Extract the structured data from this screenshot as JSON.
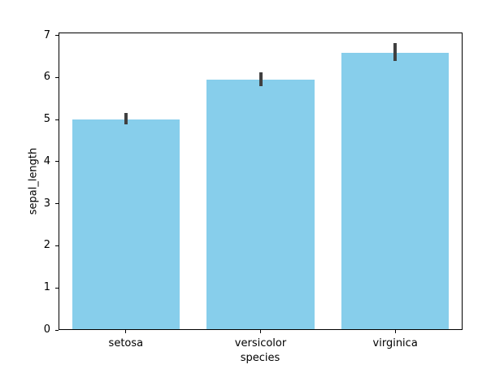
{
  "chart_data": {
    "type": "bar",
    "title": "",
    "xlabel": "species",
    "ylabel": "sepal_length",
    "categories": [
      "setosa",
      "versicolor",
      "virginica"
    ],
    "values": [
      5.01,
      5.94,
      6.59
    ],
    "error_bars": [
      {
        "low": 4.88,
        "high": 5.15
      },
      {
        "low": 5.8,
        "high": 6.13
      },
      {
        "low": 6.4,
        "high": 6.82
      }
    ],
    "yticks": [
      0,
      1,
      2,
      3,
      4,
      5,
      6,
      7
    ],
    "ylim": [
      0,
      7.07
    ],
    "bar_width_fraction": 0.8,
    "bar_color": "#87CEEB",
    "error_color": "#404040",
    "axis_color": "#000000",
    "background": "#ffffff",
    "grid": false,
    "legend": "none"
  }
}
